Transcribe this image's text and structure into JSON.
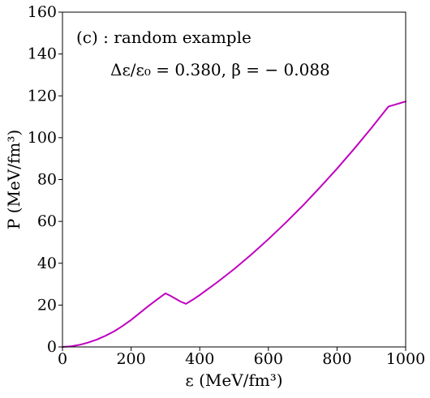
{
  "chart_data": {
    "type": "line",
    "title": "",
    "xlabel": "ε (MeV/fm³)",
    "ylabel": "P (MeV/fm³)",
    "xlim": [
      0,
      1000
    ],
    "ylim": [
      0,
      160
    ],
    "xticks": [
      0,
      200,
      400,
      600,
      800,
      1000
    ],
    "yticks": [
      0,
      20,
      40,
      60,
      80,
      100,
      120,
      140,
      160
    ],
    "grid": false,
    "legend": "none",
    "annotations": [
      "(c) : random example",
      "Δε/ε₀ = 0.380, β = − 0.088"
    ],
    "series": [
      {
        "color": "#c000c0",
        "x": [
          0,
          25,
          50,
          75,
          100,
          125,
          150,
          175,
          200,
          225,
          250,
          275,
          300,
          315,
          330,
          345,
          360,
          380,
          400,
          450,
          500,
          550,
          600,
          650,
          700,
          750,
          800,
          850,
          900,
          950,
          1000
        ],
        "y": [
          0,
          0.3,
          1.0,
          2.1,
          3.5,
          5.3,
          7.4,
          10.0,
          12.9,
          16.2,
          19.5,
          22.6,
          25.6,
          24.4,
          23.0,
          21.6,
          20.6,
          22.6,
          24.8,
          30.8,
          37.2,
          44.1,
          51.5,
          59.3,
          67.5,
          76.2,
          85.2,
          94.7,
          104.6,
          114.9,
          117.3
        ]
      }
    ]
  }
}
